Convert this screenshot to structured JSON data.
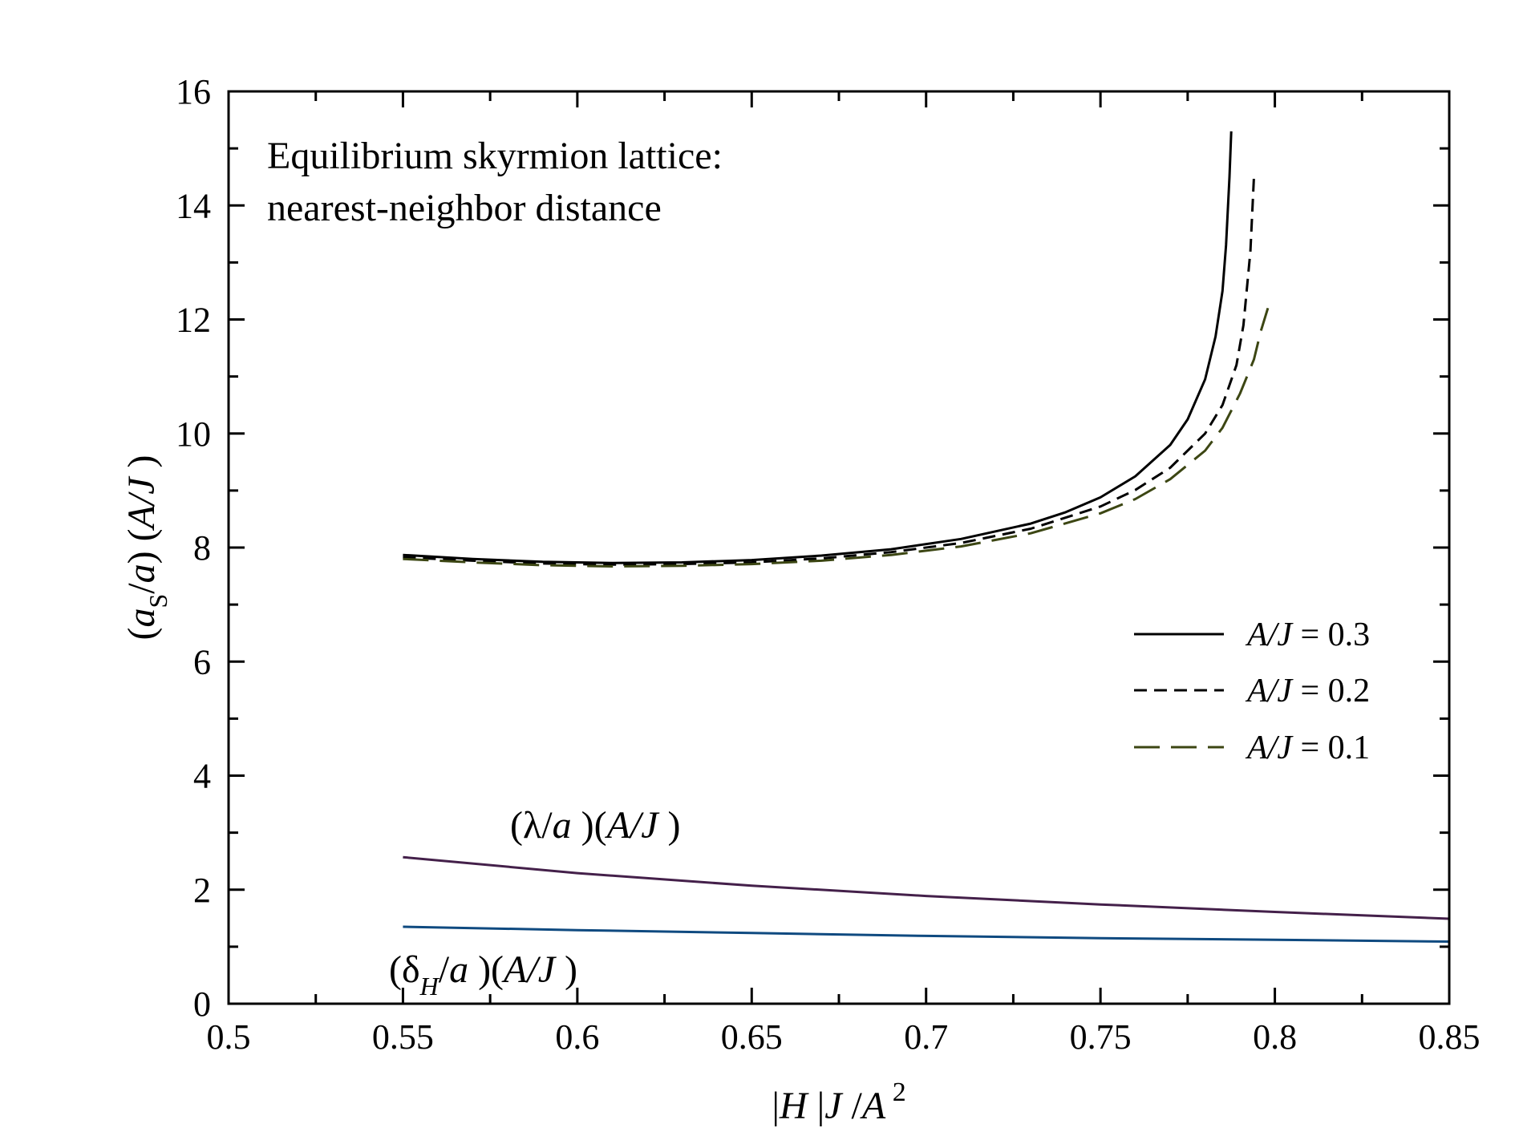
{
  "chart_data": {
    "type": "line",
    "title_lines": [
      "Equilibrium skyrmion lattice:",
      "nearest-neighbor distance"
    ],
    "xlabel": {
      "a": "|",
      "b": "H",
      "c": " |",
      "d": "J",
      "e": " /",
      "f": "A",
      "g": " 2"
    },
    "ylabel": {
      "a": "(",
      "b": "a",
      "c": "S",
      "d": "/",
      "e": "a",
      "f": ") (",
      "g": "A/J",
      "h": " )"
    },
    "xlim": [
      0.5,
      0.85
    ],
    "ylim": [
      0,
      16
    ],
    "xticks": [
      "0.5",
      "0.55",
      "0.6",
      "0.65",
      "0.7",
      "0.75",
      "0.8",
      "0.85"
    ],
    "yticks": [
      "0",
      "2",
      "4",
      "6",
      "8",
      "10",
      "12",
      "14",
      "16"
    ],
    "legend": {
      "position": "right",
      "entries": [
        {
          "italic": "A/J",
          "rest": " = 0.3"
        },
        {
          "italic": "A/J",
          "rest": " = 0.2"
        },
        {
          "italic": "A/J",
          "rest": " = 0.1"
        }
      ]
    },
    "series": [
      {
        "name": "A/J = 0.3",
        "style": "solid",
        "color": "#000000",
        "x": [
          0.55,
          0.57,
          0.59,
          0.61,
          0.63,
          0.65,
          0.67,
          0.69,
          0.71,
          0.73,
          0.74,
          0.75,
          0.76,
          0.77,
          0.775,
          0.78,
          0.783,
          0.785,
          0.786,
          0.787,
          0.7875
        ],
        "y": [
          7.87,
          7.8,
          7.75,
          7.73,
          7.74,
          7.78,
          7.86,
          7.97,
          8.15,
          8.42,
          8.62,
          8.88,
          9.25,
          9.8,
          10.25,
          10.95,
          11.7,
          12.5,
          13.3,
          14.5,
          15.3
        ]
      },
      {
        "name": "A/J = 0.2",
        "style": "dashed",
        "color": "#000000",
        "x": [
          0.55,
          0.57,
          0.59,
          0.61,
          0.63,
          0.65,
          0.67,
          0.69,
          0.71,
          0.73,
          0.75,
          0.76,
          0.77,
          0.78,
          0.785,
          0.789,
          0.791,
          0.793,
          0.794
        ],
        "y": [
          7.83,
          7.77,
          7.72,
          7.7,
          7.71,
          7.74,
          7.81,
          7.92,
          8.08,
          8.33,
          8.72,
          9.01,
          9.4,
          10.0,
          10.5,
          11.2,
          11.9,
          13.2,
          14.5
        ]
      },
      {
        "name": "A/J = 0.1",
        "style": "longdash",
        "color": "#3c4613",
        "x": [
          0.55,
          0.57,
          0.59,
          0.61,
          0.63,
          0.65,
          0.67,
          0.69,
          0.71,
          0.73,
          0.75,
          0.76,
          0.77,
          0.78,
          0.785,
          0.79,
          0.794,
          0.796,
          0.798
        ],
        "y": [
          7.8,
          7.74,
          7.69,
          7.67,
          7.68,
          7.71,
          7.77,
          7.87,
          8.02,
          8.25,
          8.6,
          8.85,
          9.2,
          9.7,
          10.1,
          10.7,
          11.3,
          11.8,
          12.2
        ]
      },
      {
        "name": "lambda",
        "style": "solid",
        "color": "#44204a",
        "x": [
          0.55,
          0.6,
          0.65,
          0.7,
          0.75,
          0.8,
          0.85
        ],
        "y": [
          2.57,
          2.29,
          2.07,
          1.89,
          1.74,
          1.61,
          1.49
        ]
      },
      {
        "name": "delta_H",
        "style": "solid",
        "color": "#0f4a80",
        "x": [
          0.55,
          0.6,
          0.65,
          0.7,
          0.75,
          0.8,
          0.85
        ],
        "y": [
          1.35,
          1.29,
          1.24,
          1.19,
          1.15,
          1.12,
          1.09
        ]
      }
    ],
    "annotations": {
      "lambda": {
        "a": "(λ/",
        "b": "a",
        "c": " )(",
        "d": "A/J",
        "e": " )"
      },
      "delta": {
        "a": "(δ",
        "b": "H",
        "c": "/",
        "d": "a",
        "e": " )(",
        "f": "A/J",
        "g": " )"
      }
    }
  }
}
